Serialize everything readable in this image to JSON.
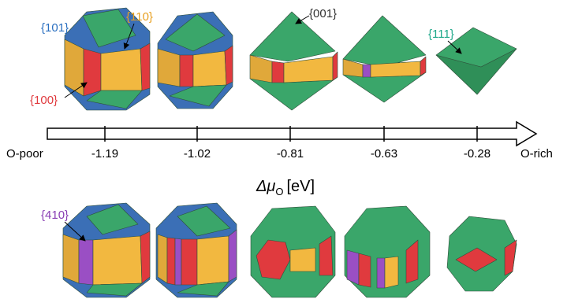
{
  "facet_labels": {
    "f101": "{101}",
    "f110": "{110}",
    "f001": "{001}",
    "f111": "{111}",
    "f100": "{100}",
    "f410": "{410}"
  },
  "axis": {
    "left_label": "O-poor",
    "right_label": "O-rich",
    "ticks": [
      "-1.19",
      "-1.02",
      "-0.81",
      "-0.63",
      "-0.28"
    ],
    "title": {
      "main": "Δμ",
      "sub": "O",
      "unit": "[eV]"
    }
  }
}
